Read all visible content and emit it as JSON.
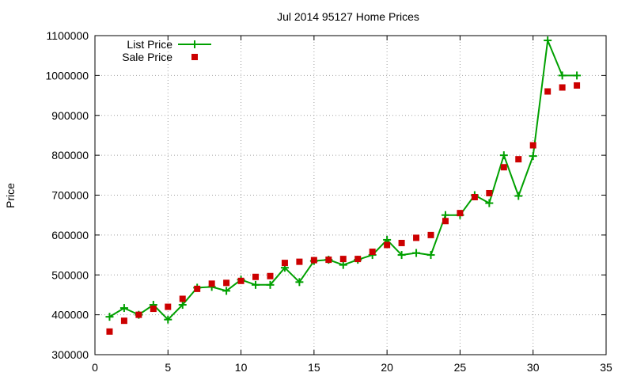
{
  "colors": {
    "list_price": "#00a000",
    "sale_price": "#cc0000",
    "background": "#ffffff",
    "grid": "#a0a0a0"
  },
  "chart_data": {
    "type": "line",
    "title": "Jul 2014 95127 Home Prices",
    "xlabel": "",
    "ylabel": "Price",
    "xlim": [
      0,
      35
    ],
    "ylim": [
      300000,
      1100000
    ],
    "xticks": [
      "0",
      "5",
      "10",
      "15",
      "20",
      "25",
      "30",
      "35"
    ],
    "yticks": [
      "300000",
      "400000",
      "500000",
      "600000",
      "700000",
      "800000",
      "900000",
      "1000000",
      "1100000"
    ],
    "grid": true,
    "legend_position": "top-left",
    "series": [
      {
        "name": "List Price",
        "style": "line-with-plus-markers",
        "x": [
          1,
          2,
          3,
          4,
          5,
          6,
          7,
          8,
          9,
          10,
          11,
          12,
          13,
          14,
          15,
          16,
          17,
          18,
          19,
          20,
          21,
          22,
          23,
          24,
          25,
          26,
          27,
          28,
          29,
          30,
          31,
          32,
          33
        ],
        "values": [
          395000,
          417000,
          400000,
          425000,
          388000,
          425000,
          468000,
          470000,
          460000,
          488000,
          475000,
          475000,
          518000,
          482000,
          535000,
          538000,
          525000,
          538000,
          550000,
          588000,
          550000,
          555000,
          550000,
          650000,
          650000,
          700000,
          680000,
          800000,
          698000,
          798000,
          1088000,
          1000000,
          1000000
        ]
      },
      {
        "name": "Sale Price",
        "style": "square-markers",
        "x": [
          1,
          2,
          3,
          4,
          5,
          6,
          7,
          8,
          9,
          10,
          11,
          12,
          13,
          14,
          15,
          16,
          17,
          18,
          19,
          20,
          21,
          22,
          23,
          24,
          25,
          26,
          27,
          28,
          29,
          30,
          31,
          32,
          33
        ],
        "values": [
          358000,
          385000,
          400000,
          415000,
          420000,
          440000,
          465000,
          478000,
          480000,
          485000,
          495000,
          497000,
          530000,
          533000,
          537000,
          538000,
          540000,
          540000,
          558000,
          575000,
          580000,
          593000,
          600000,
          635000,
          655000,
          695000,
          705000,
          770000,
          790000,
          825000,
          960000,
          970000,
          975000
        ]
      }
    ]
  }
}
